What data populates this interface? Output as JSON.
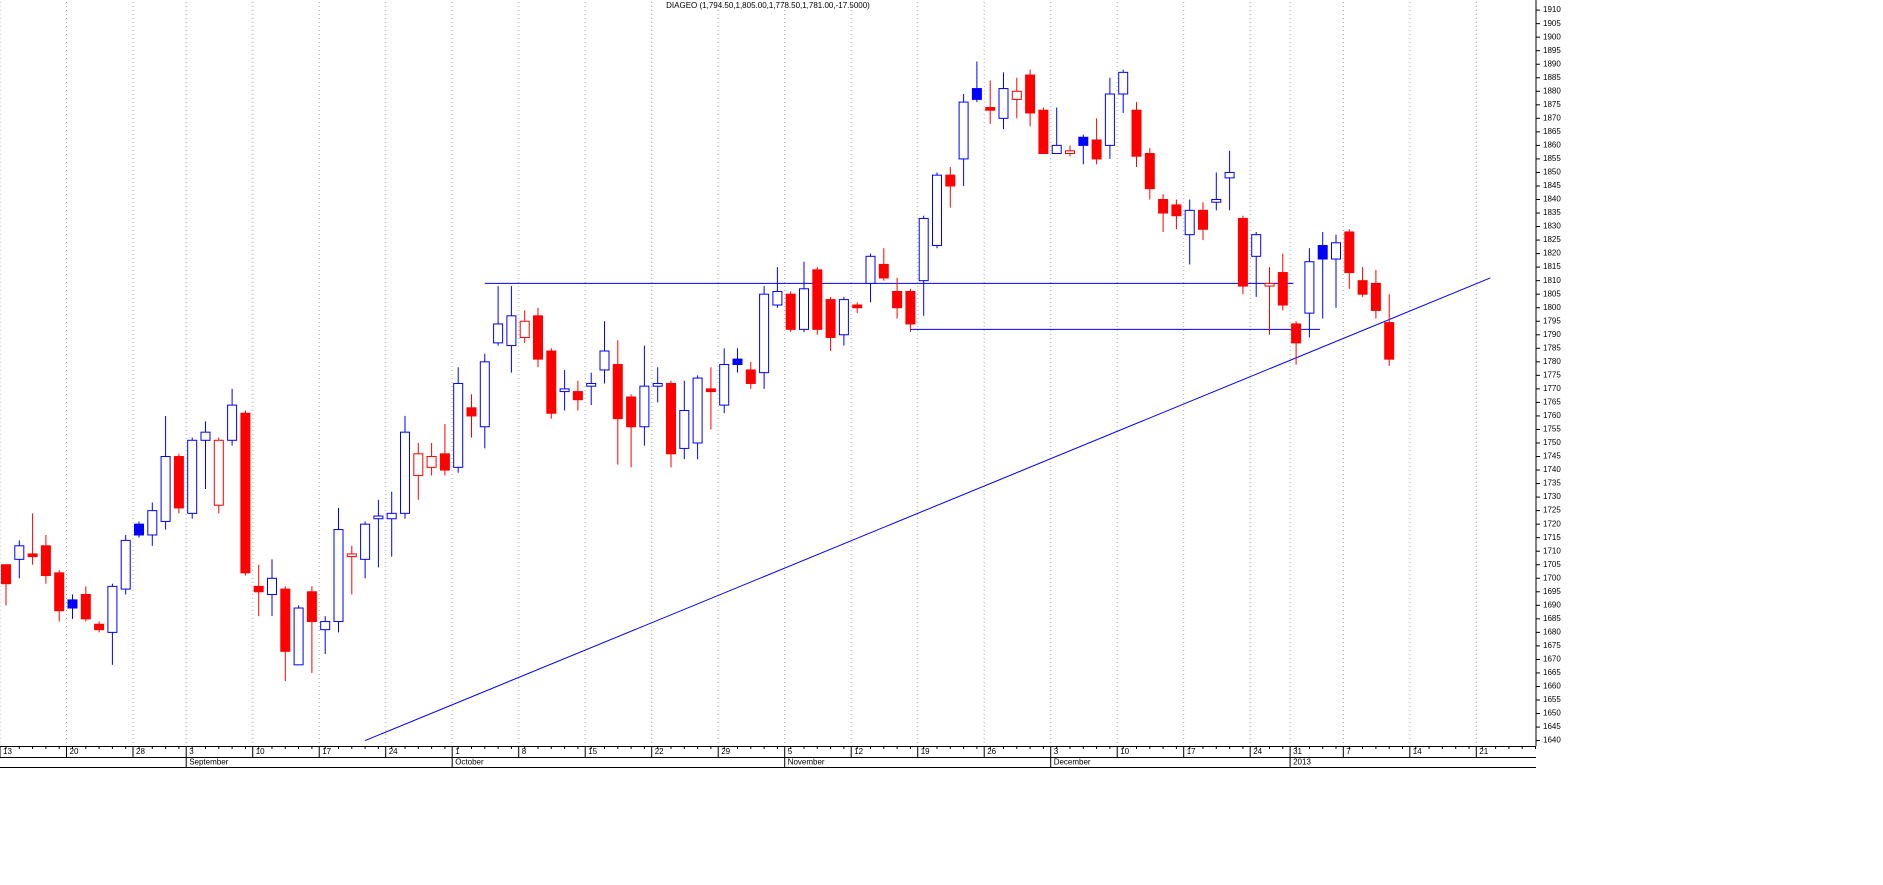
{
  "chart_data": {
    "type": "candlestick",
    "title": "DIAGEO (1,794.50,1,805.00,1,778.50,1,781.00,-17.5000)",
    "categories": [
      "13",
      null,
      null,
      null,
      null,
      "20",
      null,
      null,
      null,
      null,
      "28",
      null,
      null,
      null,
      "3",
      null,
      null,
      null,
      null,
      "10",
      null,
      null,
      null,
      null,
      "17",
      null,
      null,
      null,
      null,
      "24",
      null,
      null,
      null,
      null,
      "1",
      null,
      null,
      null,
      null,
      "8",
      null,
      null,
      null,
      null,
      "15",
      null,
      null,
      null,
      null,
      "22",
      null,
      null,
      null,
      null,
      "29",
      null,
      null,
      null,
      null,
      "5",
      null,
      null,
      null,
      null,
      "12",
      null,
      null,
      null,
      null,
      "19",
      null,
      null,
      null,
      null,
      "26",
      null,
      null,
      null,
      null,
      "3",
      null,
      null,
      null,
      null,
      "10",
      null,
      null,
      null,
      null,
      "17",
      null,
      null,
      null,
      null,
      "24",
      null,
      null,
      "31",
      null,
      null,
      null,
      "7",
      null,
      null,
      null,
      null,
      "14",
      null,
      null,
      null,
      null,
      "21",
      null,
      null,
      null,
      null
    ],
    "months": [
      null,
      null,
      null,
      null,
      null,
      null,
      null,
      null,
      null,
      null,
      null,
      null,
      null,
      null,
      "September",
      null,
      null,
      null,
      null,
      null,
      null,
      null,
      null,
      null,
      null,
      null,
      null,
      null,
      null,
      null,
      null,
      null,
      null,
      null,
      "October",
      null,
      null,
      null,
      null,
      null,
      null,
      null,
      null,
      null,
      null,
      null,
      null,
      null,
      null,
      null,
      null,
      null,
      null,
      null,
      null,
      null,
      null,
      null,
      null,
      "November",
      null,
      null,
      null,
      null,
      null,
      null,
      null,
      null,
      null,
      null,
      null,
      null,
      null,
      null,
      null,
      null,
      null,
      null,
      null,
      "December",
      null,
      null,
      null,
      null,
      null,
      null,
      null,
      null,
      null,
      null,
      null,
      null,
      null,
      null,
      null,
      null,
      null,
      "2013",
      null,
      null,
      null,
      null,
      null,
      null,
      null,
      null,
      null,
      null,
      null,
      null,
      null,
      null,
      null,
      null,
      null,
      null
    ],
    "open": [
      1705,
      1707,
      1709,
      1712,
      1702,
      1692,
      1694,
      1683,
      1680,
      1696,
      1720,
      1716,
      1721,
      1745,
      1724,
      1751,
      1727,
      1751,
      1761,
      1697,
      1694,
      1696,
      1668,
      1695,
      1681,
      1684,
      1708,
      1707,
      1722,
      1722,
      1724,
      1738,
      1741,
      1746,
      1741,
      1763,
      1756,
      1787,
      1786,
      1789,
      1797,
      1784,
      1769,
      1769,
      1771,
      1777,
      1779,
      1767,
      1756,
      1771,
      1772,
      1748,
      1750,
      1770,
      1764,
      1781,
      1777,
      1776,
      1801,
      1805,
      1792,
      1814,
      1803,
      1790,
      1801,
      1809,
      1816,
      1806,
      1806,
      1810,
      1823,
      1849,
      1855,
      1881,
      1874,
      1870,
      1877,
      1886,
      1873,
      1857,
      1857,
      1863,
      1862,
      1860,
      1879,
      1873,
      1857,
      1840,
      1838,
      1827,
      1836,
      1839,
      1848,
      1833,
      1819,
      1808,
      1813,
      1794,
      1798,
      1823,
      1818,
      1828,
      1810,
      1809,
      1794.5,
      null,
      null,
      null,
      null,
      null,
      null,
      null,
      null,
      null,
      null,
      null
    ],
    "high": [
      1705,
      1714,
      1724,
      1716,
      1703,
      1694,
      1697,
      1684,
      1698,
      1716,
      1721,
      1728,
      1760,
      1746,
      1752,
      1758,
      1752,
      1770,
      1762,
      1705,
      1707,
      1697,
      1690,
      1697,
      1686,
      1726,
      1712,
      1721,
      1729,
      1732,
      1760,
      1750,
      1750,
      1757,
      1778,
      1768,
      1783,
      1808,
      1808,
      1799,
      1800,
      1785,
      1777,
      1773,
      1776,
      1795,
      1788,
      1768,
      1786,
      1778,
      1773,
      1773,
      1775,
      1778,
      1785,
      1785,
      1780,
      1808,
      1815,
      1806,
      1817,
      1815,
      1804,
      1804,
      1802,
      1820,
      1822,
      1811,
      1807,
      1834,
      1850,
      1852,
      1879,
      1891,
      1884,
      1887,
      1885,
      1888,
      1874,
      1874,
      1860,
      1864,
      1870,
      1885,
      1888,
      1876,
      1859,
      1842,
      1840,
      1840,
      1839,
      1850,
      1858,
      1834,
      1828,
      1815,
      1820,
      1795,
      1822,
      1828,
      1827,
      1829,
      1815,
      1814,
      1805,
      null,
      null,
      null,
      null,
      null,
      null,
      null,
      null,
      null,
      null,
      null
    ],
    "low": [
      1690,
      1700,
      1705,
      1698,
      1684,
      1685,
      1684,
      1680,
      1668,
      1694,
      1715,
      1712,
      1718,
      1724,
      1722,
      1733,
      1724,
      1749,
      1701,
      1686,
      1686,
      1662,
      1668,
      1665,
      1672,
      1680,
      1694,
      1700,
      1704,
      1708,
      1722,
      1729,
      1738,
      1738,
      1739,
      1752,
      1748,
      1786,
      1776,
      1787,
      1778,
      1759,
      1762,
      1762,
      1764,
      1772,
      1742,
      1741,
      1749,
      1765,
      1741,
      1744,
      1744,
      1755,
      1761,
      1776,
      1770,
      1770,
      1800,
      1791,
      1791,
      1790,
      1784,
      1786,
      1798,
      1802,
      1810,
      1796,
      1791,
      1797,
      1822,
      1837,
      1845,
      1876,
      1868,
      1866,
      1870,
      1867,
      1857,
      1857,
      1856,
      1853,
      1853,
      1855,
      1872,
      1852,
      1840,
      1828,
      1829,
      1816,
      1825,
      1836,
      1836,
      1805,
      1804,
      1790,
      1799,
      1779,
      1789,
      1796,
      1800,
      1807,
      1804,
      1796,
      1778.5,
      null,
      null,
      null,
      null,
      null,
      null,
      null,
      null,
      null,
      null,
      null
    ],
    "close": [
      1698,
      1712,
      1708,
      1701,
      1688,
      1689,
      1685,
      1681,
      1697,
      1714,
      1716,
      1725,
      1745,
      1726,
      1751,
      1754,
      1751,
      1764,
      1702,
      1695,
      1700,
      1673,
      1689,
      1684,
      1684,
      1718,
      1709,
      1720,
      1723,
      1724,
      1754,
      1746,
      1745,
      1740,
      1772,
      1760,
      1780,
      1794,
      1797,
      1795,
      1781,
      1761,
      1770,
      1766,
      1772,
      1784,
      1759,
      1756,
      1771,
      1772,
      1746,
      1762,
      1774,
      1769,
      1779,
      1779,
      1772,
      1805,
      1806,
      1792,
      1807,
      1792,
      1789,
      1803,
      1800,
      1819,
      1811,
      1800,
      1794,
      1833,
      1849,
      1845,
      1876,
      1877,
      1873,
      1881,
      1880,
      1872,
      1857,
      1860,
      1858,
      1860,
      1855,
      1879,
      1887,
      1856,
      1844,
      1835,
      1834,
      1836,
      1829,
      1840,
      1850,
      1808,
      1827,
      1809,
      1801,
      1787,
      1817,
      1818,
      1824,
      1813,
      1805,
      1799,
      1781,
      null,
      null,
      null,
      null,
      null,
      null,
      null,
      null,
      null,
      null,
      null
    ],
    "colors": {
      "up": "#0000ff",
      "down": "#ff0000"
    },
    "trendline_color": "#0000ff",
    "trendlines": [
      {
        "from": [
          36,
          1809
        ],
        "to": [
          96.8,
          1809
        ]
      },
      {
        "from": [
          68,
          1792
        ],
        "to": [
          98.8,
          1792
        ]
      },
      {
        "from": [
          27,
          1640
        ],
        "to": [
          111.6,
          1811
        ]
      }
    ],
    "ylim": [
      1638,
      1913
    ],
    "yticks": [
      1640,
      1645,
      1650,
      1655,
      1660,
      1665,
      1670,
      1675,
      1680,
      1685,
      1690,
      1695,
      1700,
      1705,
      1710,
      1715,
      1720,
      1725,
      1730,
      1735,
      1740,
      1745,
      1750,
      1755,
      1760,
      1765,
      1770,
      1775,
      1780,
      1785,
      1790,
      1795,
      1800,
      1805,
      1810,
      1815,
      1820,
      1825,
      1830,
      1835,
      1840,
      1845,
      1850,
      1855,
      1860,
      1865,
      1870,
      1875,
      1880,
      1885,
      1890,
      1895,
      1900,
      1905,
      1910
    ],
    "grid": true
  }
}
